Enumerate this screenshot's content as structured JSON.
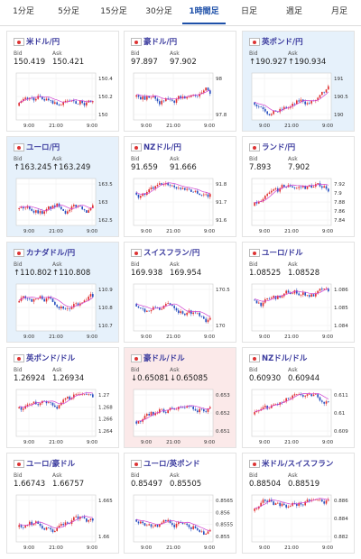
{
  "tabs": [
    "1分足",
    "5分足",
    "15分足",
    "30分足",
    "1時間足",
    "日足",
    "週足",
    "月足"
  ],
  "active_tab": 4,
  "bid_label": "Bid",
  "ask_label": "Ask",
  "cards": [
    {
      "pair": "米ドル/円",
      "bid": "150.419",
      "ask": "150.421",
      "highlight": "none",
      "yticks": [
        "150.4",
        "150.2",
        "150"
      ],
      "xlabels": [
        "9:00",
        "21:00",
        "9:00"
      ]
    },
    {
      "pair": "豪ドル/円",
      "bid": "97.897",
      "ask": "97.902",
      "highlight": "none",
      "yticks": [
        "98",
        "97.8"
      ],
      "xlabels": [
        "9:00",
        "21:00",
        "9:00"
      ]
    },
    {
      "pair": "英ポンド/円",
      "bid": "↑190.927",
      "ask": "↑190.934",
      "highlight": "up",
      "yticks": [
        "191",
        "190.5",
        "190"
      ],
      "xlabels": [
        "9:00",
        "21:00",
        "9:00"
      ]
    },
    {
      "pair": "ユーロ/円",
      "bid": "↑163.245",
      "ask": "↑163.249",
      "highlight": "up",
      "yticks": [
        "163.5",
        "163",
        "162.5"
      ],
      "xlabels": [
        "9:00",
        "21:00",
        "9:00"
      ]
    },
    {
      "pair": "NZドル/円",
      "bid": "91.659",
      "ask": "91.666",
      "highlight": "none",
      "yticks": [
        "91.8",
        "91.7",
        "91.6"
      ],
      "xlabels": [
        "9:00",
        "21:00",
        "9:00"
      ]
    },
    {
      "pair": "ランド/円",
      "bid": "7.893",
      "ask": "7.902",
      "highlight": "none",
      "yticks": [
        "7.92",
        "7.9",
        "7.88",
        "7.86",
        "7.84"
      ],
      "xlabels": [
        "9:00",
        "21:00",
        "9:00"
      ]
    },
    {
      "pair": "カナダドル/円",
      "bid": "↑110.802",
      "ask": "↑110.808",
      "highlight": "up",
      "yticks": [
        "110.9",
        "110.8",
        "110.7"
      ],
      "xlabels": [
        "9:00",
        "21:00",
        "9:00"
      ]
    },
    {
      "pair": "スイスフラン/円",
      "bid": "169.938",
      "ask": "169.954",
      "highlight": "none",
      "yticks": [
        "170.5",
        "170"
      ],
      "xlabels": [
        "9:00",
        "21:00",
        "9:00"
      ]
    },
    {
      "pair": "ユーロ/ドル",
      "bid": "1.08525",
      "ask": "1.08528",
      "highlight": "none",
      "yticks": [
        "1.086",
        "1.085",
        "1.084"
      ],
      "xlabels": [
        "9:00",
        "21:00",
        "9:00"
      ]
    },
    {
      "pair": "英ポンド/ドル",
      "bid": "1.26924",
      "ask": "1.26934",
      "highlight": "none",
      "yticks": [
        "1.27",
        "1.268",
        "1.266",
        "1.264"
      ],
      "xlabels": [
        "9:00",
        "21:00",
        "9:00"
      ]
    },
    {
      "pair": "豪ドル/ドル",
      "bid": "↓0.65081",
      "ask": "↓0.65085",
      "highlight": "down",
      "yticks": [
        "0.653",
        "0.652",
        "0.651"
      ],
      "xlabels": [
        "9:00",
        "21:00",
        "9:00"
      ]
    },
    {
      "pair": "NZドル/ドル",
      "bid": "0.60930",
      "ask": "0.60944",
      "highlight": "none",
      "yticks": [
        "0.611",
        "0.61",
        "0.609"
      ],
      "xlabels": [
        "9:00",
        "21:00",
        "9:00"
      ]
    },
    {
      "pair": "ユーロ/豪ドル",
      "bid": "1.66743",
      "ask": "1.66757",
      "highlight": "none",
      "yticks": [
        "1.665",
        "1.66"
      ],
      "xlabels": [
        "9:00",
        "21:00",
        "9:00"
      ]
    },
    {
      "pair": "ユーロ/英ポンド",
      "bid": "0.85497",
      "ask": "0.85505",
      "highlight": "none",
      "yticks": [
        "0.8565",
        "0.856",
        "0.8555",
        "0.855"
      ],
      "xlabels": [
        "9:00",
        "21:00",
        "9:00"
      ]
    },
    {
      "pair": "米ドル/スイスフラン",
      "bid": "0.88504",
      "ask": "0.88519",
      "highlight": "none",
      "yticks": [
        "0.886",
        "0.884",
        "0.882"
      ],
      "xlabels": [
        "9:00",
        "21:00",
        "9:00"
      ]
    }
  ]
}
